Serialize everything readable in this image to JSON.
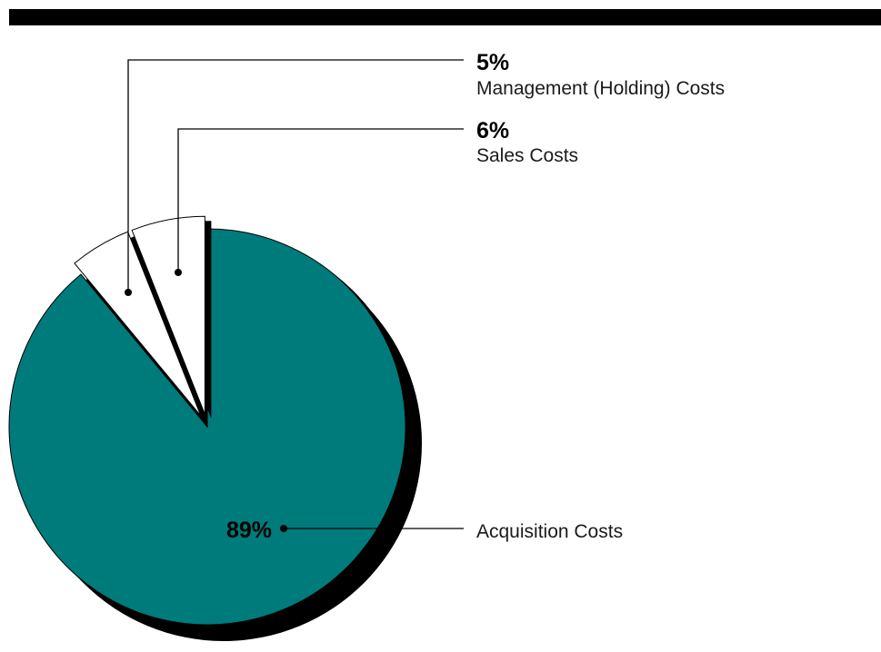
{
  "chart_data": {
    "type": "pie",
    "title": "",
    "slices": [
      {
        "label": "Acquisition Costs",
        "value": 89,
        "display": "89%",
        "color": "#007b7b",
        "exploded": false
      },
      {
        "label": "Management (Holding) Costs",
        "value": 5,
        "display": "5%",
        "color": "#ffffff",
        "exploded": true
      },
      {
        "label": "Sales Costs",
        "value": 6,
        "display": "6%",
        "color": "#ffffff",
        "exploded": true
      }
    ],
    "start_angle_deg": 0,
    "direction": "clockwise",
    "shadow_color": "#000000",
    "legend": "none"
  }
}
